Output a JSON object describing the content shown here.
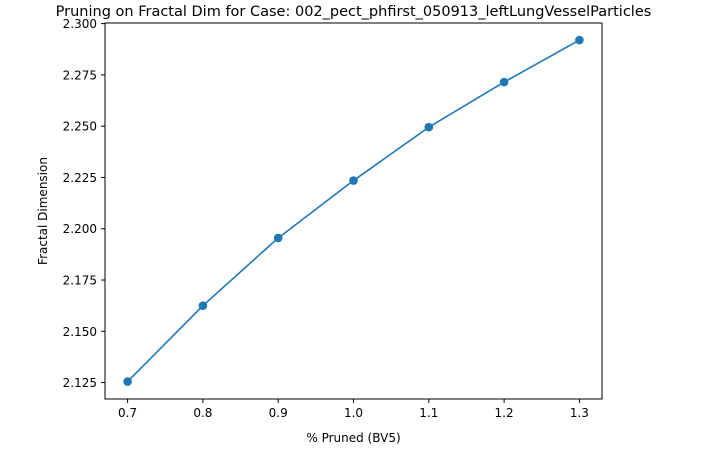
{
  "chart_data": {
    "type": "line",
    "title": "Pruning on Fractal Dim for Case: 002_pect_phfirst_050913_leftLungVesselParticles",
    "xlabel": "% Pruned (BV5)",
    "ylabel": "Fractal Dimension",
    "x": [
      0.7,
      0.8,
      0.9,
      1.0,
      1.1,
      1.2,
      1.3
    ],
    "series": [
      {
        "values": [
          2.1255,
          2.1625,
          2.1955,
          2.2235,
          2.2495,
          2.2715,
          2.292
        ],
        "color": "#1f77b4",
        "marker": "circle"
      }
    ],
    "xlim": [
      0.67,
      1.33
    ],
    "ylim": [
      2.117,
      2.3003
    ],
    "xticks": [
      0.7,
      0.8,
      0.9,
      1.0,
      1.1,
      1.2,
      1.3
    ],
    "xtick_labels": [
      "0.7",
      "0.8",
      "0.9",
      "1.0",
      "1.1",
      "1.2",
      "1.3"
    ],
    "yticks": [
      2.125,
      2.15,
      2.175,
      2.2,
      2.225,
      2.25,
      2.275,
      2.3
    ],
    "ytick_labels": [
      "2.125",
      "2.150",
      "2.175",
      "2.200",
      "2.225",
      "2.250",
      "2.275",
      "2.300"
    ],
    "grid": false,
    "legend": false
  }
}
